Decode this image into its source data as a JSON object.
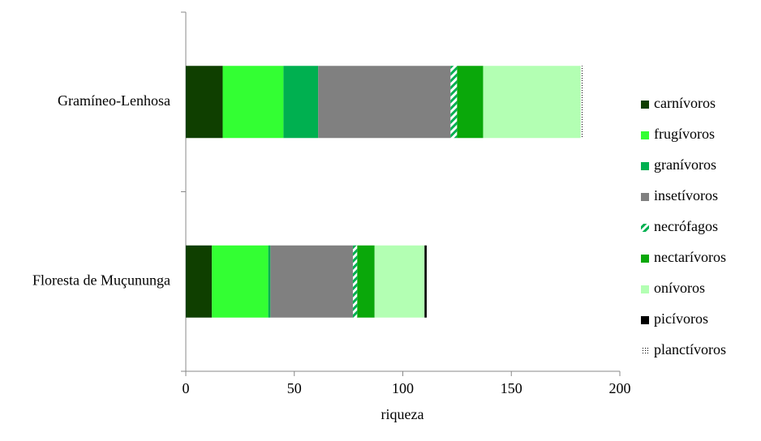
{
  "chart_data": {
    "type": "stacked-bar-horizontal",
    "x_label": "riqueza",
    "categories": [
      "Gramíneo-Lenhosa",
      "Floresta de Muçununga"
    ],
    "series": [
      {
        "name": "carnívoros",
        "color": "#0f3f00",
        "values": [
          17,
          12
        ]
      },
      {
        "name": "frugívoros",
        "color": "#33ff33",
        "values": [
          28,
          26
        ]
      },
      {
        "name": "granívoros",
        "color": "#00b050",
        "values": [
          16,
          1
        ]
      },
      {
        "name": "insetívoros",
        "color": "#808080",
        "values": [
          61,
          38
        ]
      },
      {
        "name": "necrófagos",
        "color": "#00b050",
        "pattern": "hatch",
        "values": [
          3,
          2
        ]
      },
      {
        "name": "nectarívoros",
        "color": "#0aa80a",
        "values": [
          12,
          8
        ]
      },
      {
        "name": "onívoros",
        "color": "#b3ffb3",
        "values": [
          45,
          23
        ]
      },
      {
        "name": "picívoros",
        "color": "#000000",
        "values": [
          0,
          1
        ]
      },
      {
        "name": "planctívoros",
        "color": "#000000",
        "pattern": "dots",
        "values": [
          1,
          0
        ]
      }
    ],
    "xlim": [
      0,
      200
    ],
    "xticks": [
      0,
      50,
      100,
      150,
      200
    ],
    "legend": "right"
  }
}
